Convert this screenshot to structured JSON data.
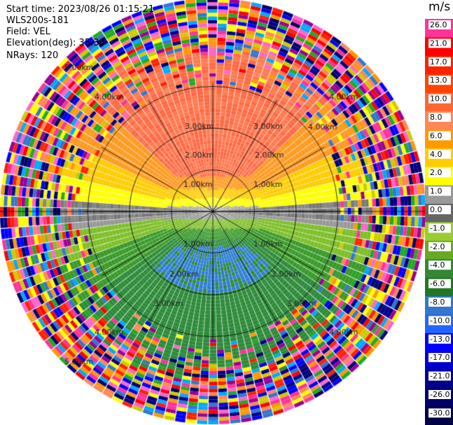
{
  "header": {
    "start_time": "Start time: 2023/08/26 01:15:21",
    "site": "WLS200s-181",
    "field": "Field: VEL",
    "elevation": "Elevation(deg): 35.30",
    "nrays": "NRays: 120"
  },
  "chart_data": {
    "type": "heatmap",
    "subtype": "polar-ppi",
    "field": "VEL",
    "nrays": 120,
    "range_rings_km": [
      1.0,
      2.0,
      3.0
    ],
    "ring_labels": [
      "1.00km",
      "2.00km",
      "3.00km"
    ],
    "outer_labels": [
      "4.00km",
      "5.00km"
    ],
    "colorbar": {
      "unit": "m/s",
      "ticks": [
        "26.0",
        "21.0",
        "17.0",
        "13.0",
        "10.0",
        "8.0",
        "6.0",
        "4.0",
        "2.0",
        "1.0",
        "0.0",
        "-1.0",
        "-2.0",
        "-4.0",
        "-6.0",
        "-8.0",
        "-10.0",
        "-13.0",
        "-17.0",
        "-21.0",
        "-26.0",
        "-30.0"
      ],
      "colors": [
        "#ff3399",
        "#ff0000",
        "#ff2200",
        "#ff4400",
        "#ff6633",
        "#ff8855",
        "#ff9900",
        "#ffcc00",
        "#ffff00",
        "#999999",
        "#666666",
        "#99cc33",
        "#66aa22",
        "#338833",
        "#227722",
        "#3377cc",
        "#2266ff",
        "#0000ff",
        "#0000cc",
        "#000088",
        "#000066",
        "#000044"
      ]
    },
    "pattern": {
      "north_color": "#ff6a45",
      "south_color": "#2e8b3a",
      "center_dir_deg_from_north": 0
    },
    "grid": true
  }
}
